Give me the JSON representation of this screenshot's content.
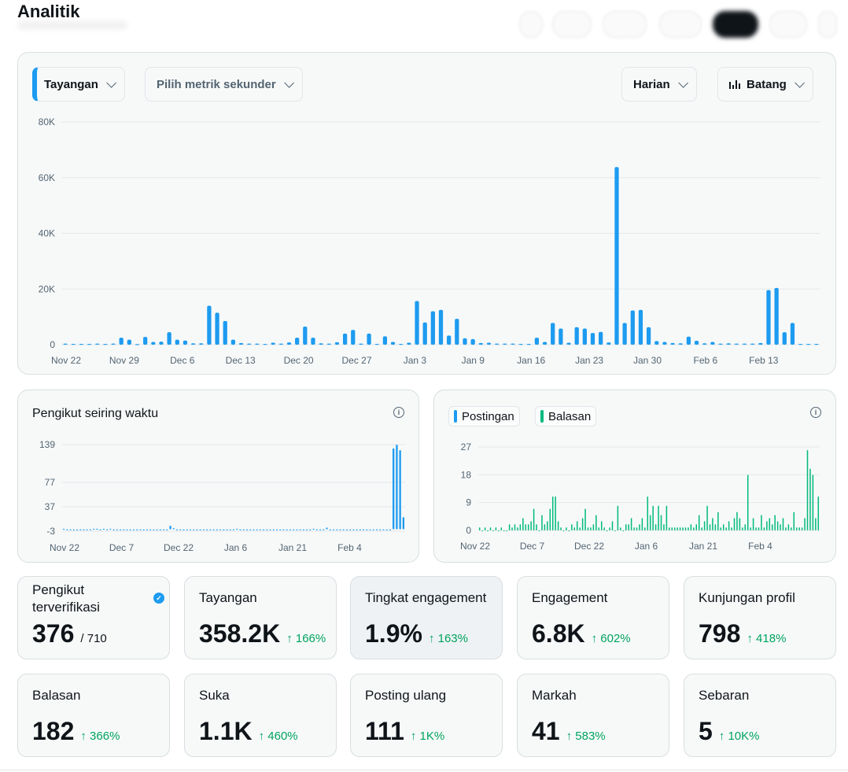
{
  "page": {
    "title": "Analitik"
  },
  "main_chart": {
    "primary_metric": "Tayangan",
    "secondary_metric_placeholder": "Pilih metrik sekunder",
    "period": "Harian",
    "chart_type_label": "Batang"
  },
  "followers_chart": {
    "title": "Pengikut seiring waktu"
  },
  "posts_chart": {
    "legend": [
      {
        "label": "Postingan",
        "color": "#1d9bf0"
      },
      {
        "label": "Balasan",
        "color": "#00ba7c"
      }
    ]
  },
  "stats": [
    {
      "label": "Pengikut terverifikasi",
      "value": "376",
      "sub": "/ 710",
      "delta": "",
      "verified": true
    },
    {
      "label": "Tayangan",
      "value": "358.2K",
      "delta": "↑ 166%"
    },
    {
      "label": "Tingkat engagement",
      "value": "1.9%",
      "delta": "↑ 163%"
    },
    {
      "label": "Engagement",
      "value": "6.8K",
      "delta": "↑ 602%"
    },
    {
      "label": "Kunjungan profil",
      "value": "798",
      "delta": "↑ 418%"
    },
    {
      "label": "Balasan",
      "value": "182",
      "delta": "↑ 366%"
    },
    {
      "label": "Suka",
      "value": "1.1K",
      "delta": "↑ 460%"
    },
    {
      "label": "Posting ulang",
      "value": "111",
      "delta": "↑ 1K%"
    },
    {
      "label": "Markah",
      "value": "41",
      "delta": "↑ 583%"
    },
    {
      "label": "Sebaran",
      "value": "5",
      "delta": "↑ 10K%"
    }
  ],
  "chart_data": [
    {
      "type": "bar",
      "title": "",
      "series": [
        {
          "name": "Tayangan",
          "color": "#1d9bf0",
          "values": [
            400,
            300,
            300,
            300,
            400,
            300,
            400,
            2500,
            1800,
            200,
            2800,
            1000,
            1100,
            4500,
            1800,
            1500,
            500,
            500,
            14000,
            11500,
            8500,
            1800,
            600,
            400,
            400,
            300,
            700,
            400,
            800,
            2500,
            6500,
            2500,
            500,
            400,
            900,
            4000,
            5300,
            400,
            4000,
            300,
            3000,
            1000,
            300,
            700,
            15700,
            8000,
            12000,
            12500,
            3300,
            9300,
            2300,
            2000,
            600,
            700,
            400,
            400,
            400,
            300,
            300,
            2500,
            1000,
            7800,
            5800,
            700,
            6300,
            5800,
            4200,
            4600,
            800,
            63800,
            7800,
            12300,
            12500,
            6300,
            1300,
            1000,
            600,
            500,
            2900,
            1400,
            500,
            1000,
            400,
            500,
            400,
            400,
            400,
            600,
            19600,
            20400,
            4500,
            7800,
            300,
            300,
            300
          ]
        }
      ],
      "x_tick_labels": [
        "Nov 22",
        "Nov 29",
        "Dec 6",
        "Dec 13",
        "Dec 20",
        "Dec 27",
        "Jan 3",
        "Jan 9",
        "Jan 16",
        "Jan 23",
        "Jan 30",
        "Feb 6",
        "Feb 13"
      ],
      "y_tick_labels": [
        "0",
        "20K",
        "40K",
        "60K",
        "80K"
      ],
      "ylim": [
        0,
        80000
      ]
    },
    {
      "type": "bar",
      "title": "Pengikut seiring waktu",
      "series": [
        {
          "name": "",
          "color": "#1d9bf0",
          "values": [
            1,
            0,
            0,
            0,
            0,
            0,
            0,
            0,
            0,
            1,
            1,
            0,
            1,
            0,
            1,
            0,
            0,
            0,
            0,
            0,
            0,
            0,
            0,
            0,
            0,
            0,
            0,
            0,
            0,
            0,
            0,
            0,
            6,
            2,
            0,
            0,
            0,
            0,
            0,
            0,
            0,
            0,
            0,
            0,
            0,
            0,
            0,
            0,
            0,
            0,
            0,
            0,
            1,
            0,
            0,
            0,
            0,
            0,
            0,
            0,
            0,
            0,
            0,
            0,
            0,
            0,
            0,
            0,
            0,
            0,
            0,
            0,
            0,
            0,
            0,
            1,
            0,
            0,
            0,
            3,
            0,
            0,
            0,
            0,
            0,
            0,
            0,
            0,
            0,
            0,
            0,
            -1,
            0,
            0,
            0,
            0,
            0,
            0,
            0,
            133,
            139,
            130,
            20
          ]
        }
      ],
      "x_tick_labels": [
        "Nov 22",
        "Dec 7",
        "Dec 22",
        "Jan 6",
        "Jan 21",
        "Feb 4"
      ],
      "y_tick_labels": [
        "-3",
        "37",
        "77",
        "139"
      ],
      "ylim": [
        -3,
        139
      ]
    },
    {
      "type": "bar",
      "title": "",
      "series": [
        {
          "name": "Postingan",
          "color": "#1d9bf0",
          "values": [
            0
          ]
        },
        {
          "name": "Balasan",
          "color": "#00ba7c",
          "values": [
            1,
            0,
            1,
            0,
            1,
            0,
            1,
            0,
            1,
            0,
            0,
            2,
            1,
            2,
            1,
            2,
            4,
            2,
            2,
            3,
            7,
            2,
            0,
            5,
            2,
            3,
            7,
            11,
            11,
            3,
            1,
            0,
            1,
            0,
            2,
            1,
            3,
            1,
            4,
            7,
            1,
            1,
            2,
            5,
            1,
            3,
            1,
            0,
            1,
            3,
            0,
            8,
            1,
            0,
            2,
            2,
            4,
            1,
            1,
            2,
            4,
            1,
            11,
            5,
            8,
            2,
            8,
            5,
            2,
            8,
            1,
            1,
            1,
            1,
            1,
            1,
            1,
            1,
            2,
            1,
            2,
            5,
            1,
            3,
            8,
            2,
            4,
            2,
            6,
            1,
            2,
            1,
            3,
            1,
            4,
            6,
            4,
            1,
            2,
            18,
            1,
            4,
            1,
            1,
            5,
            1,
            3,
            4,
            2,
            5,
            3,
            2,
            4,
            1,
            2,
            1,
            6,
            1,
            1,
            1,
            4,
            26,
            20,
            18,
            4,
            11
          ]
        }
      ],
      "x_tick_labels": [
        "Nov 22",
        "Dec 7",
        "Dec 22",
        "Jan 6",
        "Jan 21",
        "Feb 4"
      ],
      "y_tick_labels": [
        "0",
        "9",
        "18",
        "27"
      ],
      "ylim": [
        0,
        27
      ]
    }
  ]
}
